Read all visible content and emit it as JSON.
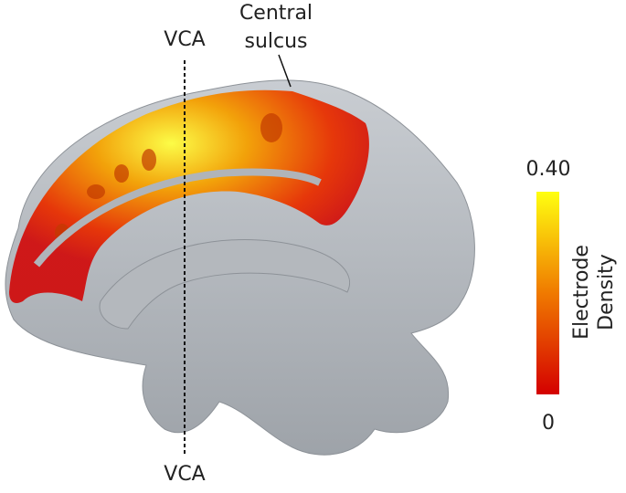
{
  "labels": {
    "vca_top": "VCA",
    "vca_bottom": "VCA",
    "central_sulcus": [
      "Central",
      "sulcus"
    ]
  },
  "colorbar": {
    "max_label": "0.40",
    "min_label": "0",
    "title": [
      "Electrode",
      "Density"
    ]
  }
}
